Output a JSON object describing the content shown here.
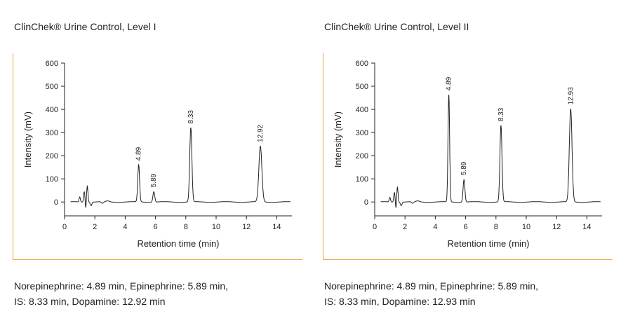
{
  "panels": [
    {
      "title": "ClinChek® Urine Control, Level I",
      "caption_lines": [
        "Norepinephrine: 4.89 min, Epinephrine: 5.89 min,",
        "IS: 8.33 min, Dopamine: 12.92 min"
      ]
    },
    {
      "title": "ClinChek® Urine Control, Level II",
      "caption_lines": [
        "Norepinephrine: 4.89 min, Epinephrine: 5.89 min,",
        "IS: 8.33 min, Dopamine: 12.93 min"
      ]
    }
  ],
  "colors": {
    "frame": "#f0a040",
    "trace": "#222222"
  },
  "chart_data": [
    {
      "type": "line",
      "title": "",
      "xlabel": "Retention time (min)",
      "ylabel": "Intensity (mV)",
      "xlim": [
        0,
        15
      ],
      "ylim": [
        -60,
        600
      ],
      "xticks": [
        0,
        2,
        4,
        6,
        8,
        10,
        12,
        14
      ],
      "yticks": [
        0,
        100,
        200,
        300,
        400,
        500,
        600
      ],
      "grid": false,
      "peaks": [
        {
          "x": 4.89,
          "y": 160,
          "label": "4.89",
          "width": 0.17
        },
        {
          "x": 5.89,
          "y": 45,
          "label": "5.89",
          "width": 0.17
        },
        {
          "x": 8.33,
          "y": 320,
          "label": "8.33",
          "width": 0.2
        },
        {
          "x": 12.92,
          "y": 240,
          "label": "12.92",
          "width": 0.28
        }
      ],
      "solvent_front": [
        {
          "x": 1.0,
          "y": 22
        },
        {
          "x": 1.3,
          "y": 45
        },
        {
          "x": 1.5,
          "y": 70
        }
      ]
    },
    {
      "type": "line",
      "title": "",
      "xlabel": "Retention time (min)",
      "ylabel": "Intensity (mV)",
      "xlim": [
        0,
        15
      ],
      "ylim": [
        -60,
        600
      ],
      "xticks": [
        0,
        2,
        4,
        6,
        8,
        10,
        12,
        14
      ],
      "yticks": [
        0,
        100,
        200,
        300,
        400,
        500,
        600
      ],
      "grid": false,
      "peaks": [
        {
          "x": 4.89,
          "y": 463,
          "label": "4.89",
          "width": 0.15
        },
        {
          "x": 5.89,
          "y": 97,
          "label": "5.89",
          "width": 0.17
        },
        {
          "x": 8.33,
          "y": 330,
          "label": "8.33",
          "width": 0.19
        },
        {
          "x": 12.93,
          "y": 402,
          "label": "12.93",
          "width": 0.25
        }
      ],
      "solvent_front": [
        {
          "x": 1.0,
          "y": 20
        },
        {
          "x": 1.3,
          "y": 42
        },
        {
          "x": 1.5,
          "y": 65
        }
      ]
    }
  ]
}
